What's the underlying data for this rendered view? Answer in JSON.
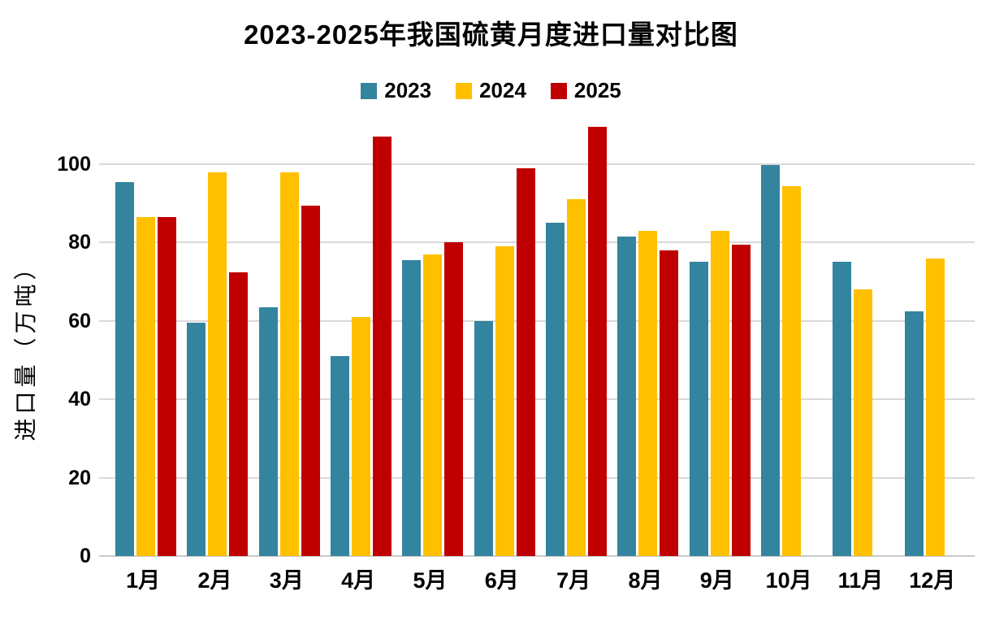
{
  "title": "2023-2025年我国硫黄月度进口量对比图",
  "y_axis_title": "进口量（万吨）",
  "colors": {
    "series_2023": "#33849E",
    "series_2024": "#FFC000",
    "series_2025": "#C00000",
    "gridline": "#D9D9D9",
    "baseline": "#C9C9C9",
    "text": "#000000",
    "background": "#FFFFFF"
  },
  "chart_data": {
    "type": "bar",
    "title": "2023-2025年我国硫黄月度进口量对比图",
    "categories": [
      "1月",
      "2月",
      "3月",
      "4月",
      "5月",
      "6月",
      "7月",
      "8月",
      "9月",
      "10月",
      "11月",
      "12月"
    ],
    "series": [
      {
        "name": "2023",
        "color": "#33849E",
        "values": [
          95.5,
          59.5,
          63.5,
          51,
          75.5,
          60,
          85,
          81.5,
          75,
          99.8,
          75,
          62.5
        ]
      },
      {
        "name": "2024",
        "color": "#FFC000",
        "values": [
          86.5,
          98,
          98,
          61,
          77,
          79,
          91,
          83,
          83,
          94.5,
          68,
          76
        ]
      },
      {
        "name": "2025",
        "color": "#C00000",
        "values": [
          86.5,
          72.5,
          89.5,
          107,
          80,
          99,
          109.5,
          78,
          79.5,
          null,
          null,
          null
        ]
      }
    ],
    "xlabel": "",
    "ylabel": "进口量（万吨）",
    "y_ticks": [
      0,
      20,
      40,
      60,
      80,
      100
    ],
    "ylim": [
      0,
      112
    ],
    "grid": true,
    "legend_position": "top"
  }
}
